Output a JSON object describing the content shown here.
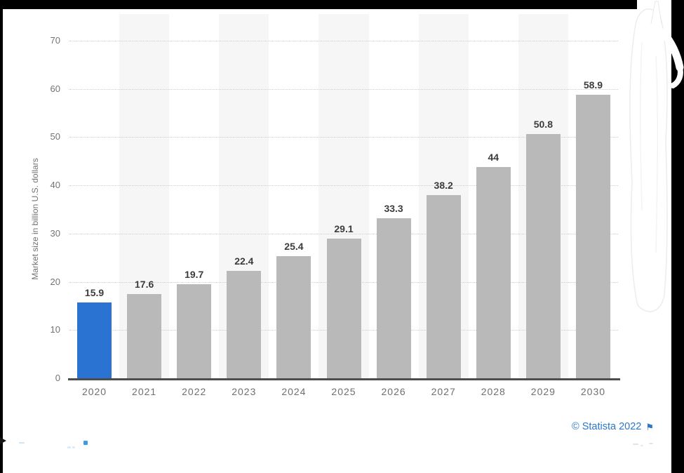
{
  "chart_data": {
    "type": "bar",
    "title": "",
    "xlabel": "",
    "ylabel": "Market size in billion U.S. dollars",
    "categories": [
      "2020",
      "2021",
      "2022",
      "2023",
      "2024",
      "2025",
      "2026",
      "2027",
      "2028",
      "2029",
      "2030"
    ],
    "values": [
      15.9,
      17.6,
      19.7,
      22.4,
      25.4,
      29.1,
      33.3,
      38.2,
      44,
      50.8,
      58.9
    ],
    "value_labels": [
      "15.9",
      "17.6",
      "19.7",
      "22.4",
      "25.4",
      "29.1",
      "33.3",
      "38.2",
      "44",
      "50.8",
      "58.9"
    ],
    "ylim": [
      0,
      70
    ],
    "yticks": [
      0,
      10,
      20,
      30,
      40,
      50,
      60,
      70
    ],
    "ytick_labels": [
      "0",
      "10",
      "20",
      "30",
      "40",
      "50",
      "60",
      "70"
    ],
    "grid": "horizontal-dotted",
    "legend": "none",
    "highlight_index": 0,
    "colors": {
      "highlight_bar": "#2b73d2",
      "default_bar": "#b9b9b9",
      "stripe": "#f6f6f6",
      "gridline": "#cdcdcd",
      "axis_line": "#4d4d4d",
      "value_label": "#3c3c3c",
      "tick_label": "#737373",
      "xtick_label": "#6f6f6f"
    }
  },
  "footer": {
    "credit": "© Statista 2022",
    "credit_color": "#2b78c8",
    "flag_icon": "flag-icon",
    "flag_glyph": "⚑"
  }
}
